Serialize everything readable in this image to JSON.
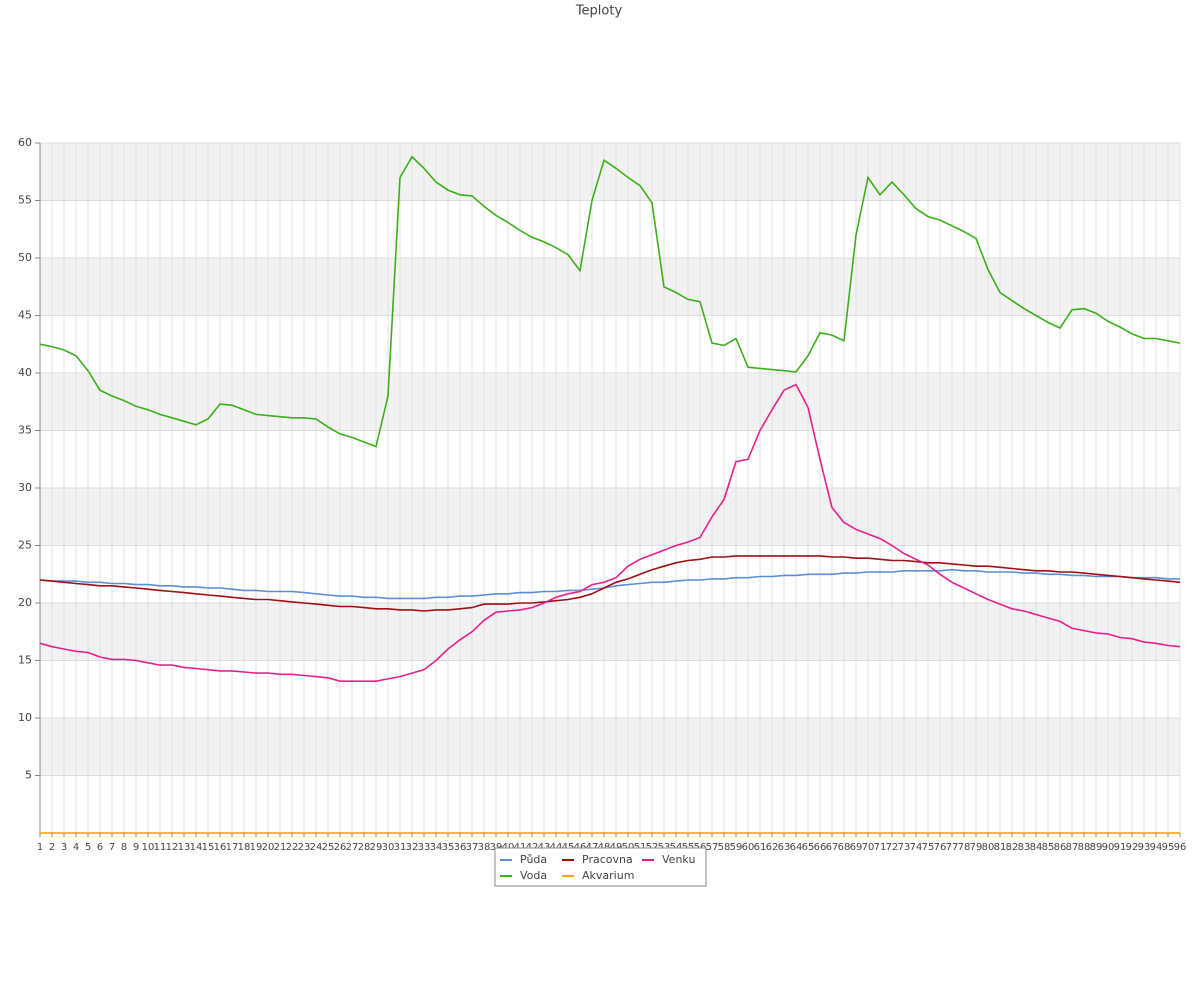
{
  "chart_data": {
    "type": "line",
    "title": "Teploty",
    "categories": [
      1,
      2,
      3,
      4,
      5,
      6,
      7,
      8,
      9,
      10,
      11,
      12,
      13,
      14,
      15,
      16,
      17,
      18,
      19,
      20,
      21,
      22,
      23,
      24,
      25,
      26,
      27,
      28,
      29,
      30,
      31,
      32,
      33,
      34,
      35,
      36,
      37,
      38,
      39,
      40,
      41,
      42,
      43,
      44,
      45,
      46,
      47,
      48,
      49,
      50,
      51,
      52,
      53,
      54,
      55,
      56,
      57,
      58,
      59,
      60,
      61,
      62,
      63,
      64,
      65,
      66,
      67,
      68,
      69,
      70,
      71,
      72,
      73,
      74,
      75,
      76,
      77,
      78,
      79,
      80,
      81,
      82,
      83,
      84,
      85,
      86,
      87,
      88,
      89,
      90,
      91,
      92,
      93,
      94,
      95,
      96
    ],
    "ylim": [
      0,
      60
    ],
    "yticks": [
      5,
      10,
      15,
      20,
      25,
      30,
      35,
      40,
      45,
      50,
      55,
      60
    ],
    "grid": true,
    "legend": "bottom",
    "series": [
      {
        "name": "Půda",
        "color": "#5b8fd6",
        "values": [
          22.0,
          21.9,
          21.9,
          21.9,
          21.8,
          21.8,
          21.7,
          21.7,
          21.6,
          21.6,
          21.5,
          21.5,
          21.4,
          21.4,
          21.3,
          21.3,
          21.2,
          21.1,
          21.1,
          21.0,
          21.0,
          21.0,
          20.9,
          20.8,
          20.7,
          20.6,
          20.6,
          20.5,
          20.5,
          20.4,
          20.4,
          20.4,
          20.4,
          20.5,
          20.5,
          20.6,
          20.6,
          20.7,
          20.8,
          20.8,
          20.9,
          20.9,
          21.0,
          21.0,
          21.1,
          21.1,
          21.2,
          21.3,
          21.5,
          21.6,
          21.7,
          21.8,
          21.8,
          21.9,
          22.0,
          22.0,
          22.1,
          22.1,
          22.2,
          22.2,
          22.3,
          22.3,
          22.4,
          22.4,
          22.5,
          22.5,
          22.5,
          22.6,
          22.6,
          22.7,
          22.7,
          22.7,
          22.8,
          22.8,
          22.8,
          22.8,
          22.9,
          22.8,
          22.8,
          22.7,
          22.7,
          22.7,
          22.6,
          22.6,
          22.5,
          22.5,
          22.4,
          22.4,
          22.3,
          22.3,
          22.3,
          22.2,
          22.2,
          22.2,
          22.1,
          22.1
        ]
      },
      {
        "name": "Pracovna",
        "color": "#a01010",
        "values": [
          22.0,
          21.9,
          21.8,
          21.7,
          21.6,
          21.5,
          21.5,
          21.4,
          21.3,
          21.2,
          21.1,
          21.0,
          20.9,
          20.8,
          20.7,
          20.6,
          20.5,
          20.4,
          20.3,
          20.3,
          20.2,
          20.1,
          20.0,
          19.9,
          19.8,
          19.7,
          19.7,
          19.6,
          19.5,
          19.5,
          19.4,
          19.4,
          19.3,
          19.4,
          19.4,
          19.5,
          19.6,
          19.9,
          19.9,
          19.9,
          20.0,
          20.0,
          20.1,
          20.2,
          20.3,
          20.5,
          20.8,
          21.3,
          21.8,
          22.1,
          22.5,
          22.9,
          23.2,
          23.5,
          23.7,
          23.8,
          24.0,
          24.0,
          24.1,
          24.1,
          24.1,
          24.1,
          24.1,
          24.1,
          24.1,
          24.1,
          24.0,
          24.0,
          23.9,
          23.9,
          23.8,
          23.7,
          23.7,
          23.6,
          23.5,
          23.5,
          23.4,
          23.3,
          23.2,
          23.2,
          23.1,
          23.0,
          22.9,
          22.8,
          22.8,
          22.7,
          22.7,
          22.6,
          22.5,
          22.4,
          22.3,
          22.2,
          22.1,
          22.0,
          21.9,
          21.8
        ]
      },
      {
        "name": "Venku",
        "color": "#e8208c",
        "values": [
          16.5,
          16.2,
          16.0,
          15.8,
          15.7,
          15.3,
          15.1,
          15.1,
          15.0,
          14.8,
          14.6,
          14.6,
          14.4,
          14.3,
          14.2,
          14.1,
          14.1,
          14.0,
          13.9,
          13.9,
          13.8,
          13.8,
          13.7,
          13.6,
          13.5,
          13.2,
          13.2,
          13.2,
          13.2,
          13.4,
          13.6,
          13.9,
          14.2,
          15.0,
          16.0,
          16.8,
          17.5,
          18.5,
          19.2,
          19.3,
          19.4,
          19.6,
          20.0,
          20.5,
          20.8,
          21.0,
          21.6,
          21.8,
          22.2,
          23.2,
          23.8,
          24.2,
          24.6,
          25.0,
          25.3,
          25.7,
          27.5,
          29.0,
          32.3,
          32.5,
          35.0,
          36.8,
          38.5,
          39.0,
          37,
          32.5,
          28.3,
          27.0,
          26.4,
          26.0,
          25.6,
          25.0,
          24.3,
          23.8,
          23.3,
          22.5,
          21.8,
          21.3,
          20.8,
          20.3,
          19.9,
          19.5,
          19.3,
          19.0,
          18.7,
          18.4,
          17.8,
          17.6,
          17.4,
          17.3,
          17.0,
          16.9,
          16.6,
          16.5,
          16.3,
          16.2
        ]
      },
      {
        "name": "Voda",
        "color": "#3cb01a",
        "values": [
          42.5,
          42.3,
          42.0,
          41.5,
          40.2,
          38.5,
          38.0,
          37.6,
          37.1,
          36.8,
          36.4,
          36.1,
          35.8,
          35.5,
          36.0,
          37.3,
          37.2,
          36.8,
          36.4,
          36.3,
          36.2,
          36.1,
          36.1,
          36.0,
          35.3,
          34.7,
          34.4,
          34.0,
          33.6,
          38,
          57,
          58.8,
          57.8,
          56.6,
          55.9,
          55.5,
          55.4,
          54.5,
          53.7,
          53.1,
          52.4,
          51.8,
          51.4,
          50.9,
          50.3,
          48.9,
          55,
          58.5,
          57.8,
          57.0,
          56.3,
          54.8,
          47.5,
          47.0,
          46.4,
          46.2,
          42.6,
          42.4,
          43.0,
          40.5,
          40.4,
          40.3,
          40.2,
          40.1,
          41.5,
          43.5,
          43.3,
          42.8,
          52,
          57,
          55.5,
          56.6,
          55.5,
          54.3,
          53.6,
          53.3,
          52.8,
          52.3,
          51.7,
          49,
          47.0,
          46.3,
          45.6,
          45.0,
          44.4,
          43.9,
          45.5,
          45.6,
          45.2,
          44.5,
          44.0,
          43.4,
          43.0,
          43.0,
          42.8,
          42.6
        ]
      },
      {
        "name": "Akvarium",
        "color": "#f0a000",
        "values": [
          0,
          0,
          0,
          0,
          0,
          0,
          0,
          0,
          0,
          0,
          0,
          0,
          0,
          0,
          0,
          0,
          0,
          0,
          0,
          0,
          0,
          0,
          0,
          0,
          0,
          0,
          0,
          0,
          0,
          0,
          0,
          0,
          0,
          0,
          0,
          0,
          0,
          0,
          0,
          0,
          0,
          0,
          0,
          0,
          0,
          0,
          0,
          0,
          0,
          0,
          0,
          0,
          0,
          0,
          0,
          0,
          0,
          0,
          0,
          0,
          0,
          0,
          0,
          0,
          0,
          0,
          0,
          0,
          0,
          0,
          0,
          0,
          0,
          0,
          0,
          0,
          0,
          0,
          0,
          0,
          0,
          0,
          0,
          0,
          0,
          0,
          0,
          0,
          0,
          0,
          0,
          0,
          0,
          0,
          0,
          0
        ]
      }
    ]
  }
}
